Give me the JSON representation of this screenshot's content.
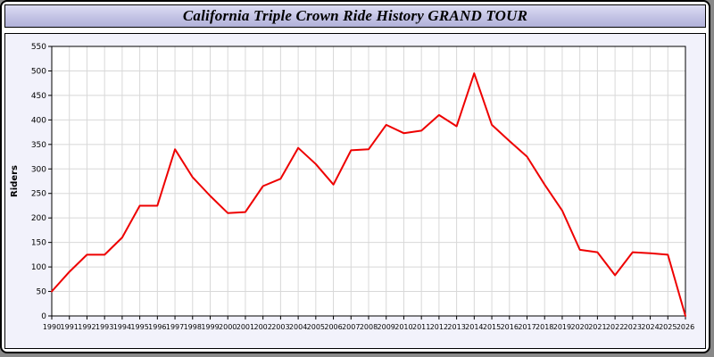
{
  "window": {
    "title": "California Triple Crown Ride History GRAND TOUR"
  },
  "chart_data": {
    "type": "line",
    "title": "California Triple Crown Ride History GRAND TOUR",
    "xlabel": "",
    "ylabel": "Riders",
    "ylim": [
      0,
      550
    ],
    "ytick_step": 50,
    "grid": true,
    "legend": "none",
    "line_color": "#ee0000",
    "grid_color": "#d8d8d8",
    "plot_bg": "#ffffff",
    "x": [
      1990,
      1991,
      1992,
      1993,
      1994,
      1995,
      1996,
      1997,
      1998,
      1999,
      2000,
      2001,
      2002,
      2003,
      2004,
      2005,
      2006,
      2007,
      2008,
      2009,
      2010,
      2011,
      2012,
      2013,
      2014,
      2015,
      2016,
      2017,
      2018,
      2019,
      2020,
      2021,
      2022,
      2023,
      2024,
      2025,
      2026
    ],
    "values": [
      50,
      90,
      125,
      125,
      160,
      225,
      225,
      340,
      283,
      245,
      210,
      212,
      265,
      280,
      343,
      310,
      268,
      338,
      340,
      390,
      373,
      378,
      410,
      387,
      495,
      390,
      357,
      325,
      268,
      215,
      135,
      130,
      83,
      130,
      128,
      125,
      0
    ]
  }
}
